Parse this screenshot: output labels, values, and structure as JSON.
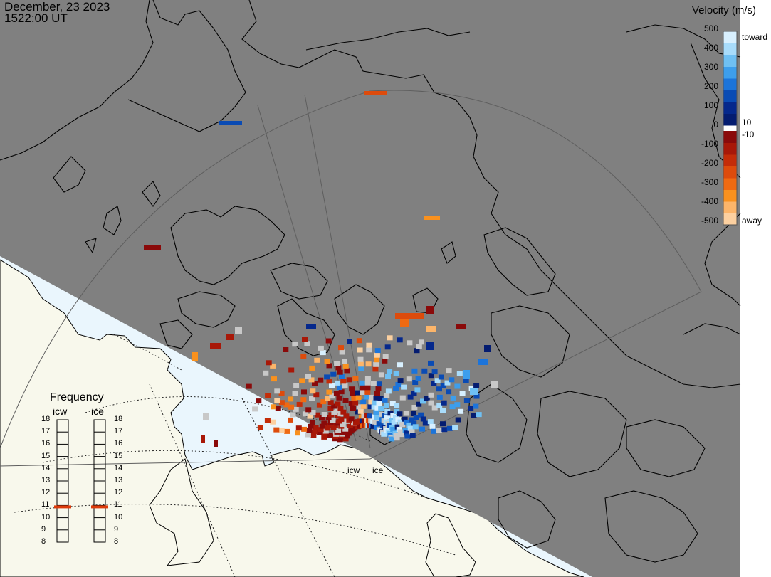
{
  "header": {
    "date": "December, 23 2023",
    "time": "1522:00 UT"
  },
  "colors": {
    "night_region": "#808080",
    "day_land": "#f8f8ec",
    "day_ocean": "#eaf6fd",
    "coastline": "#000000",
    "range_gate_grid": "#595959",
    "ground_scatter": "#c8c8c8",
    "frequency_marker": "#dd3a0a"
  },
  "colorbar": {
    "title": "Velocity (m/s)",
    "ticks_left": [
      "500",
      "400",
      "300",
      "200",
      "100",
      "0",
      "-100",
      "-200",
      "-300",
      "-400",
      "-500"
    ],
    "right_labels": {
      "top": "toward",
      "pos_threshold": "10",
      "neg_threshold": "-10",
      "bottom": "away"
    },
    "toward_colors": [
      "#d8f0ff",
      "#a8dcfb",
      "#6fc0f3",
      "#3d9eec",
      "#1c74da",
      "#0a4bb4",
      "#05288c",
      "#041c70"
    ],
    "away_colors": [
      "#8a0a0a",
      "#a81808",
      "#c42c08",
      "#dd4b0c",
      "#ef6a12",
      "#f9911e",
      "#fcb56a",
      "#fcd0a0"
    ]
  },
  "radars": {
    "site_1": "icw",
    "site_2": "ice"
  },
  "frequency_panel": {
    "title": "Frequency",
    "columns": [
      "icw",
      "ice"
    ],
    "scale": [
      "18",
      "17",
      "16",
      "15",
      "14",
      "13",
      "12",
      "11",
      "10",
      "9",
      "8"
    ],
    "values_mhz": [
      10.8,
      10.8
    ]
  },
  "map_layers": {
    "terminator": "day-night boundary",
    "radar_fov": "fan of range gates",
    "coastlines": "continental outline",
    "geographic_grid": "dotted latitude circles"
  }
}
